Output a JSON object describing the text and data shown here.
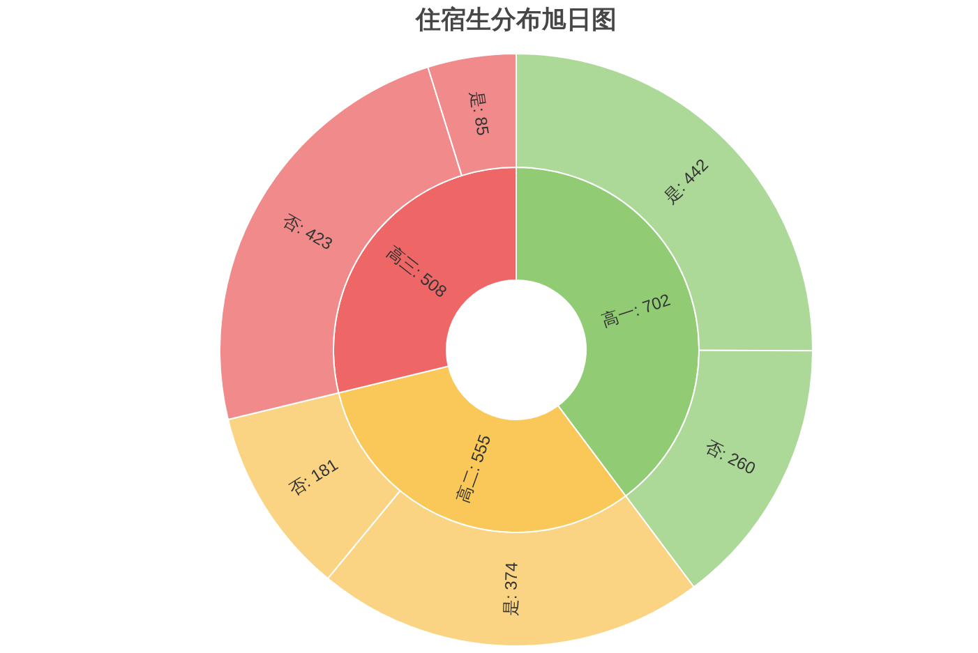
{
  "chart_data": {
    "type": "donut",
    "title": "住宿生分布旭日图",
    "series": [
      {
        "values": [
          702,
          555,
          508
        ],
        "value_labels": [
          "高一: 702",
          "高二: 555",
          "高三: 508"
        ],
        "colors": [
          "#91cc75",
          "#fac858",
          "#ee6666"
        ]
      },
      {
        "values": [
          442,
          260,
          374,
          181,
          423,
          85
        ],
        "value_labels": [
          "是: 442",
          "否: 260",
          "是: 374",
          "否: 181",
          "否: 423",
          "是: 85"
        ],
        "colors": [
          "#acd898",
          "#acd898",
          "#fad383",
          "#fad383",
          "#f18a8a",
          "#f18a8a"
        ]
      }
    ]
  }
}
